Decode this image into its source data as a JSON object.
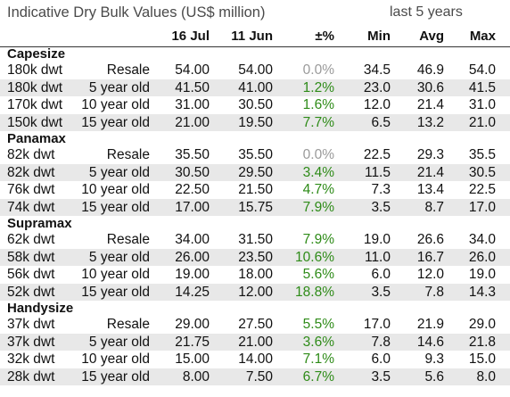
{
  "title": "Indicative Dry Bulk Values (US$ million)",
  "period_label": "last 5 years",
  "headers": {
    "current": "16 Jul",
    "previous": "11 Jun",
    "change": "±%",
    "min": "Min",
    "avg": "Avg",
    "max": "Max"
  },
  "colors": {
    "positive_change": "#2e8b18",
    "zero_change": "#9a9a9a",
    "row_shade": "#e8e8e8"
  },
  "sections": [
    {
      "name": "Capesize",
      "rows": [
        {
          "size": "180k dwt",
          "age": "Resale",
          "current": "54.00",
          "previous": "54.00",
          "change": "0.0%",
          "trend": "zero",
          "min": "34.5",
          "avg": "46.9",
          "max": "54.0"
        },
        {
          "size": "180k dwt",
          "age": "5 year old",
          "current": "41.50",
          "previous": "41.00",
          "change": "1.2%",
          "trend": "up",
          "min": "23.0",
          "avg": "30.6",
          "max": "41.5"
        },
        {
          "size": "170k dwt",
          "age": "10 year old",
          "current": "31.00",
          "previous": "30.50",
          "change": "1.6%",
          "trend": "up",
          "min": "12.0",
          "avg": "21.4",
          "max": "31.0"
        },
        {
          "size": "150k dwt",
          "age": "15 year old",
          "current": "21.00",
          "previous": "19.50",
          "change": "7.7%",
          "trend": "up",
          "min": "6.5",
          "avg": "13.2",
          "max": "21.0"
        }
      ]
    },
    {
      "name": "Panamax",
      "rows": [
        {
          "size": "82k dwt",
          "age": "Resale",
          "current": "35.50",
          "previous": "35.50",
          "change": "0.0%",
          "trend": "zero",
          "min": "22.5",
          "avg": "29.3",
          "max": "35.5"
        },
        {
          "size": "82k dwt",
          "age": "5 year old",
          "current": "30.50",
          "previous": "29.50",
          "change": "3.4%",
          "trend": "up",
          "min": "11.5",
          "avg": "21.4",
          "max": "30.5"
        },
        {
          "size": "76k dwt",
          "age": "10 year old",
          "current": "22.50",
          "previous": "21.50",
          "change": "4.7%",
          "trend": "up",
          "min": "7.3",
          "avg": "13.4",
          "max": "22.5"
        },
        {
          "size": "74k dwt",
          "age": "15 year old",
          "current": "17.00",
          "previous": "15.75",
          "change": "7.9%",
          "trend": "up",
          "min": "3.5",
          "avg": "8.7",
          "max": "17.0"
        }
      ]
    },
    {
      "name": "Supramax",
      "rows": [
        {
          "size": "62k dwt",
          "age": "Resale",
          "current": "34.00",
          "previous": "31.50",
          "change": "7.9%",
          "trend": "up",
          "min": "19.0",
          "avg": "26.6",
          "max": "34.0"
        },
        {
          "size": "58k dwt",
          "age": "5 year old",
          "current": "26.00",
          "previous": "23.50",
          "change": "10.6%",
          "trend": "up",
          "min": "11.0",
          "avg": "16.7",
          "max": "26.0"
        },
        {
          "size": "56k dwt",
          "age": "10 year old",
          "current": "19.00",
          "previous": "18.00",
          "change": "5.6%",
          "trend": "up",
          "min": "6.0",
          "avg": "12.0",
          "max": "19.0"
        },
        {
          "size": "52k dwt",
          "age": "15 year old",
          "current": "14.25",
          "previous": "12.00",
          "change": "18.8%",
          "trend": "up",
          "min": "3.5",
          "avg": "7.8",
          "max": "14.3"
        }
      ]
    },
    {
      "name": "Handysize",
      "rows": [
        {
          "size": "37k dwt",
          "age": "Resale",
          "current": "29.00",
          "previous": "27.50",
          "change": "5.5%",
          "trend": "up",
          "min": "17.0",
          "avg": "21.9",
          "max": "29.0"
        },
        {
          "size": "37k dwt",
          "age": "5 year old",
          "current": "21.75",
          "previous": "21.00",
          "change": "3.6%",
          "trend": "up",
          "min": "7.8",
          "avg": "14.6",
          "max": "21.8"
        },
        {
          "size": "32k dwt",
          "age": "10 year old",
          "current": "15.00",
          "previous": "14.00",
          "change": "7.1%",
          "trend": "up",
          "min": "6.0",
          "avg": "9.3",
          "max": "15.0"
        },
        {
          "size": "28k dwt",
          "age": "15 year old",
          "current": "8.00",
          "previous": "7.50",
          "change": "6.7%",
          "trend": "up",
          "min": "3.5",
          "avg": "5.6",
          "max": "8.0"
        }
      ]
    }
  ]
}
